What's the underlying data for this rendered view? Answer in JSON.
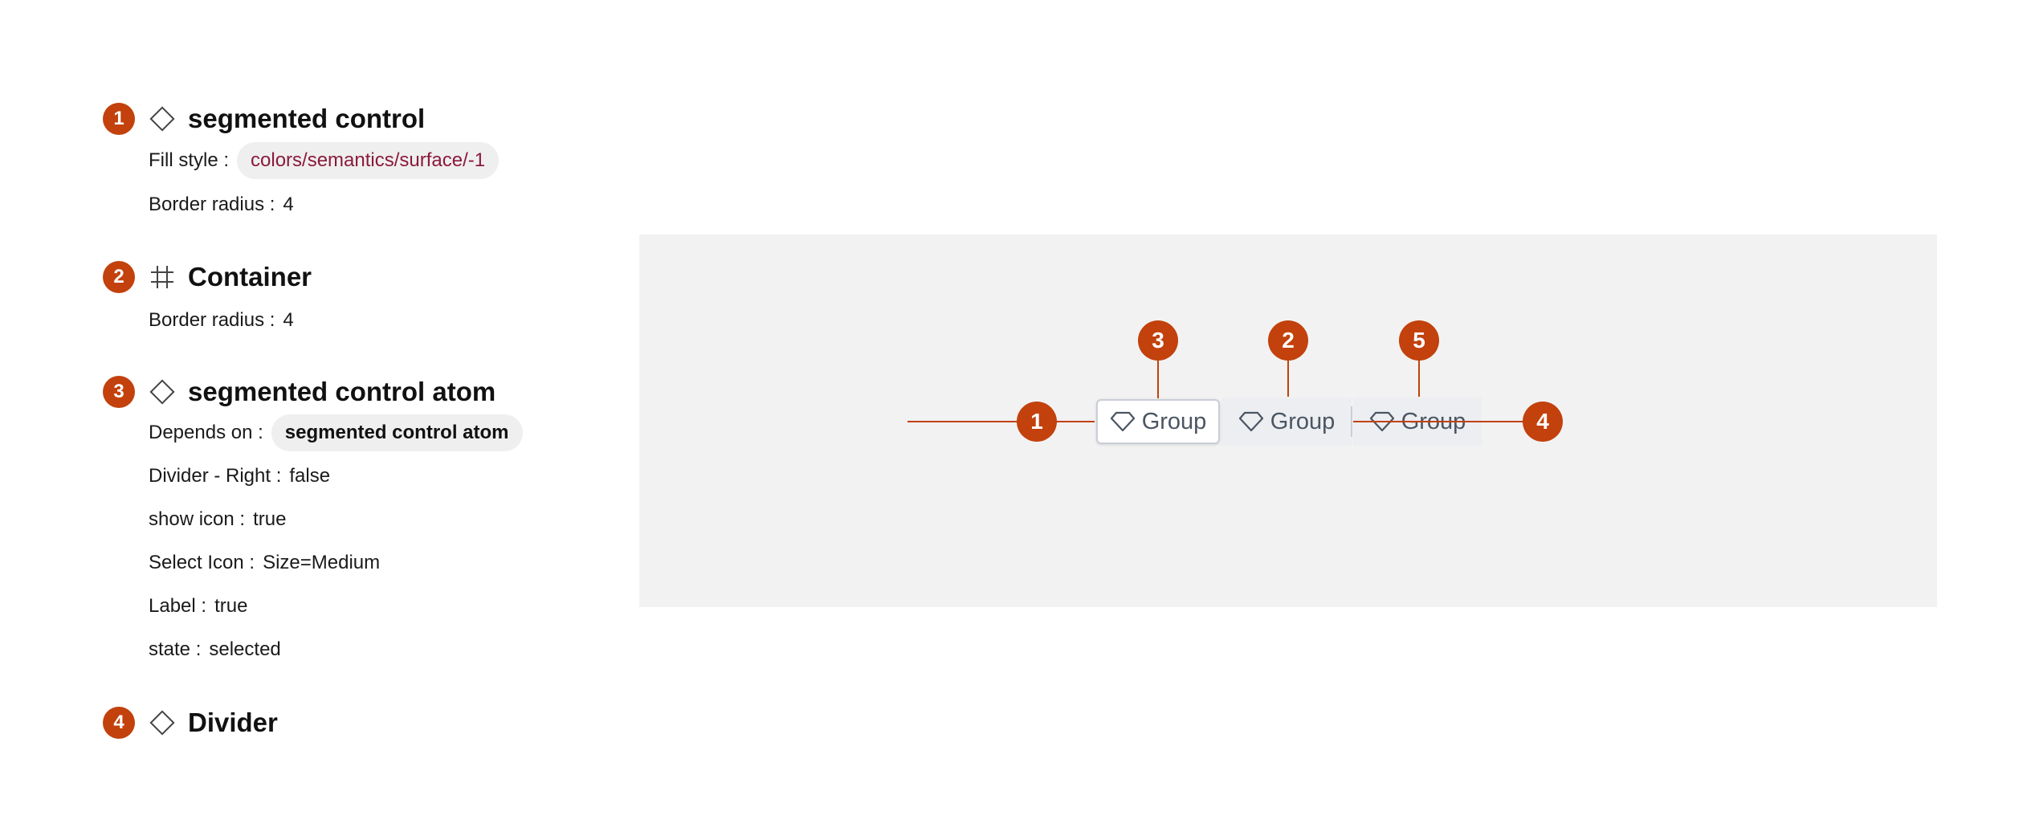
{
  "legend": [
    {
      "number": "1",
      "icon": "component-diamond-icon",
      "title": "segmented control",
      "props": [
        {
          "key": "Fill style :",
          "value": "colors/semantics/surface/-1",
          "style": "token"
        },
        {
          "key": "Border radius :",
          "value": "4"
        }
      ]
    },
    {
      "number": "2",
      "icon": "frame-hash-icon",
      "title": "Container",
      "props": [
        {
          "key": "Border radius :",
          "value": "4"
        }
      ]
    },
    {
      "number": "3",
      "icon": "component-diamond-icon",
      "title": "segmented control atom",
      "props": [
        {
          "key": "Depends on :",
          "value": "segmented control atom",
          "style": "component"
        },
        {
          "key": "Divider - Right :",
          "value": "false"
        },
        {
          "key": "show icon :",
          "value": "true"
        },
        {
          "key": "Select Icon :",
          "value": "Size=Medium"
        },
        {
          "key": "Label :",
          "value": "true"
        },
        {
          "key": "state :",
          "value": "selected"
        }
      ]
    },
    {
      "number": "4",
      "icon": "component-diamond-icon",
      "title": "Divider",
      "props": []
    }
  ],
  "preview": {
    "segments": [
      {
        "label": "Group",
        "icon": "gem-icon",
        "state": "selected"
      },
      {
        "label": "Group",
        "icon": "gem-icon",
        "state": "default"
      },
      {
        "label": "Group",
        "icon": "gem-icon",
        "state": "default"
      }
    ],
    "callouts": [
      "1",
      "3",
      "2",
      "5",
      "4"
    ]
  },
  "colors": {
    "marker": "#c2410c",
    "canvas": "#f2f2f2",
    "token_text": "#8b1a3c",
    "chip_bg": "#efefef"
  }
}
